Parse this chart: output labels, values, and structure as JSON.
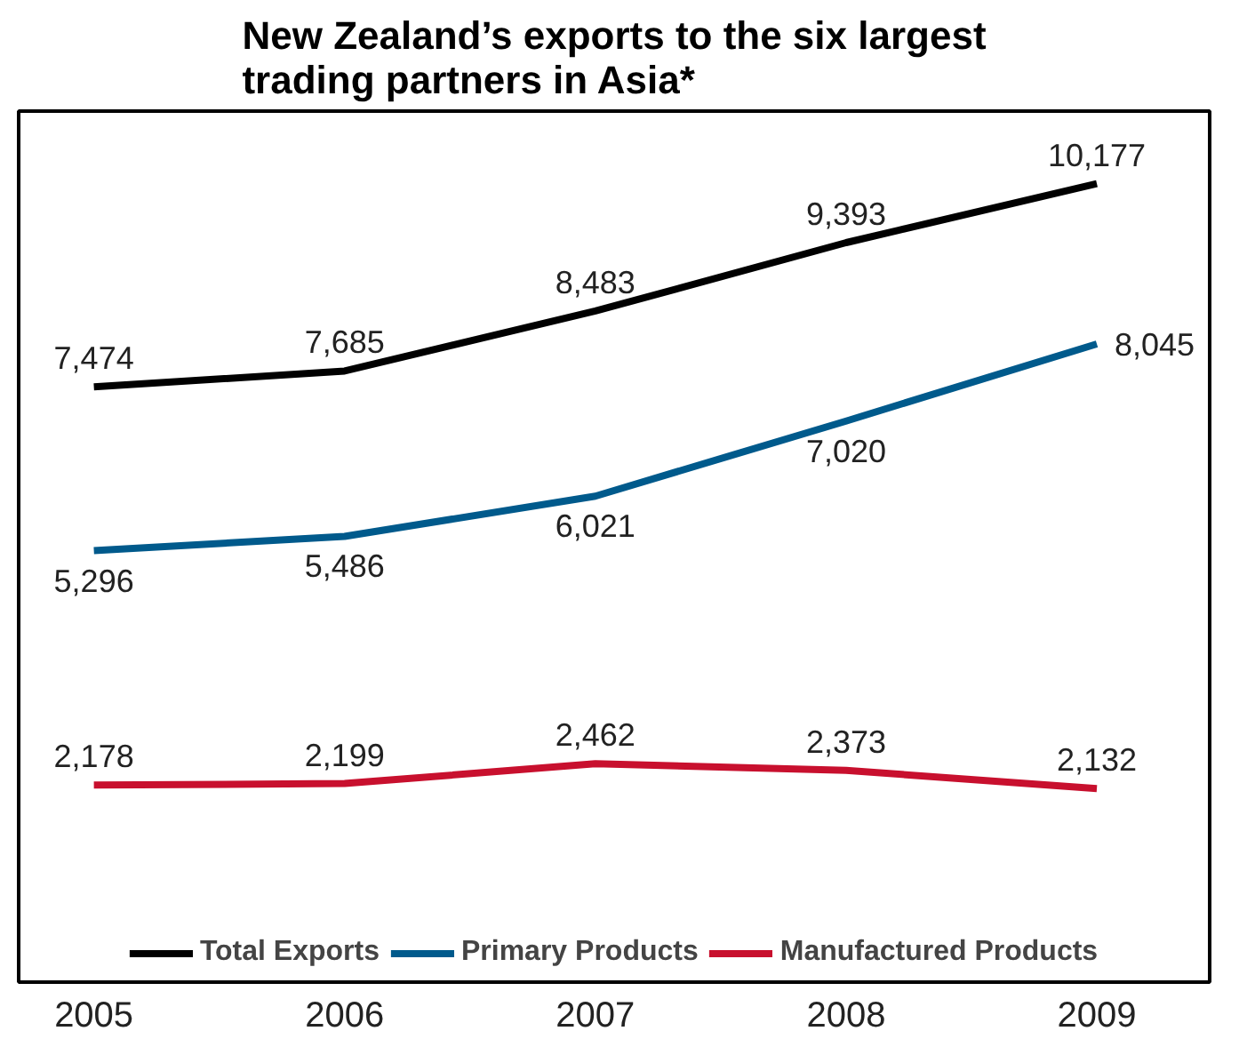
{
  "chart_data": {
    "type": "line",
    "title": "New Zealand’s exports to the six largest\ntrading partners in Asia*",
    "x": [
      2005,
      2006,
      2007,
      2008,
      2009
    ],
    "xlim": [
      2004.7,
      2009.45
    ],
    "xticks": [
      2005,
      2006,
      2007,
      2008,
      2009
    ],
    "series": [
      {
        "name": "Total Exports",
        "color": "#000000",
        "values": [
          7474,
          7685,
          8483,
          9393,
          10177
        ],
        "value_labels": [
          "7,474",
          "7,685",
          "8,483",
          "9,393",
          "10,177"
        ]
      },
      {
        "name": "Primary Products",
        "color": "#005a8c",
        "values": [
          5296,
          5486,
          6021,
          7020,
          8045
        ],
        "value_labels": [
          "5,296",
          "5,486",
          "6,021",
          "7,020",
          "8,045"
        ]
      },
      {
        "name": "Manufactured Products",
        "color": "#c8102e",
        "values": [
          2178,
          2199,
          2462,
          2373,
          2132
        ],
        "value_labels": [
          "2,178",
          "2,199",
          "2,462",
          "2,373",
          "2,132"
        ]
      }
    ],
    "legend": "bottom",
    "grid": false,
    "marker": "none",
    "line_style": "solid",
    "tick_labels": "x"
  }
}
